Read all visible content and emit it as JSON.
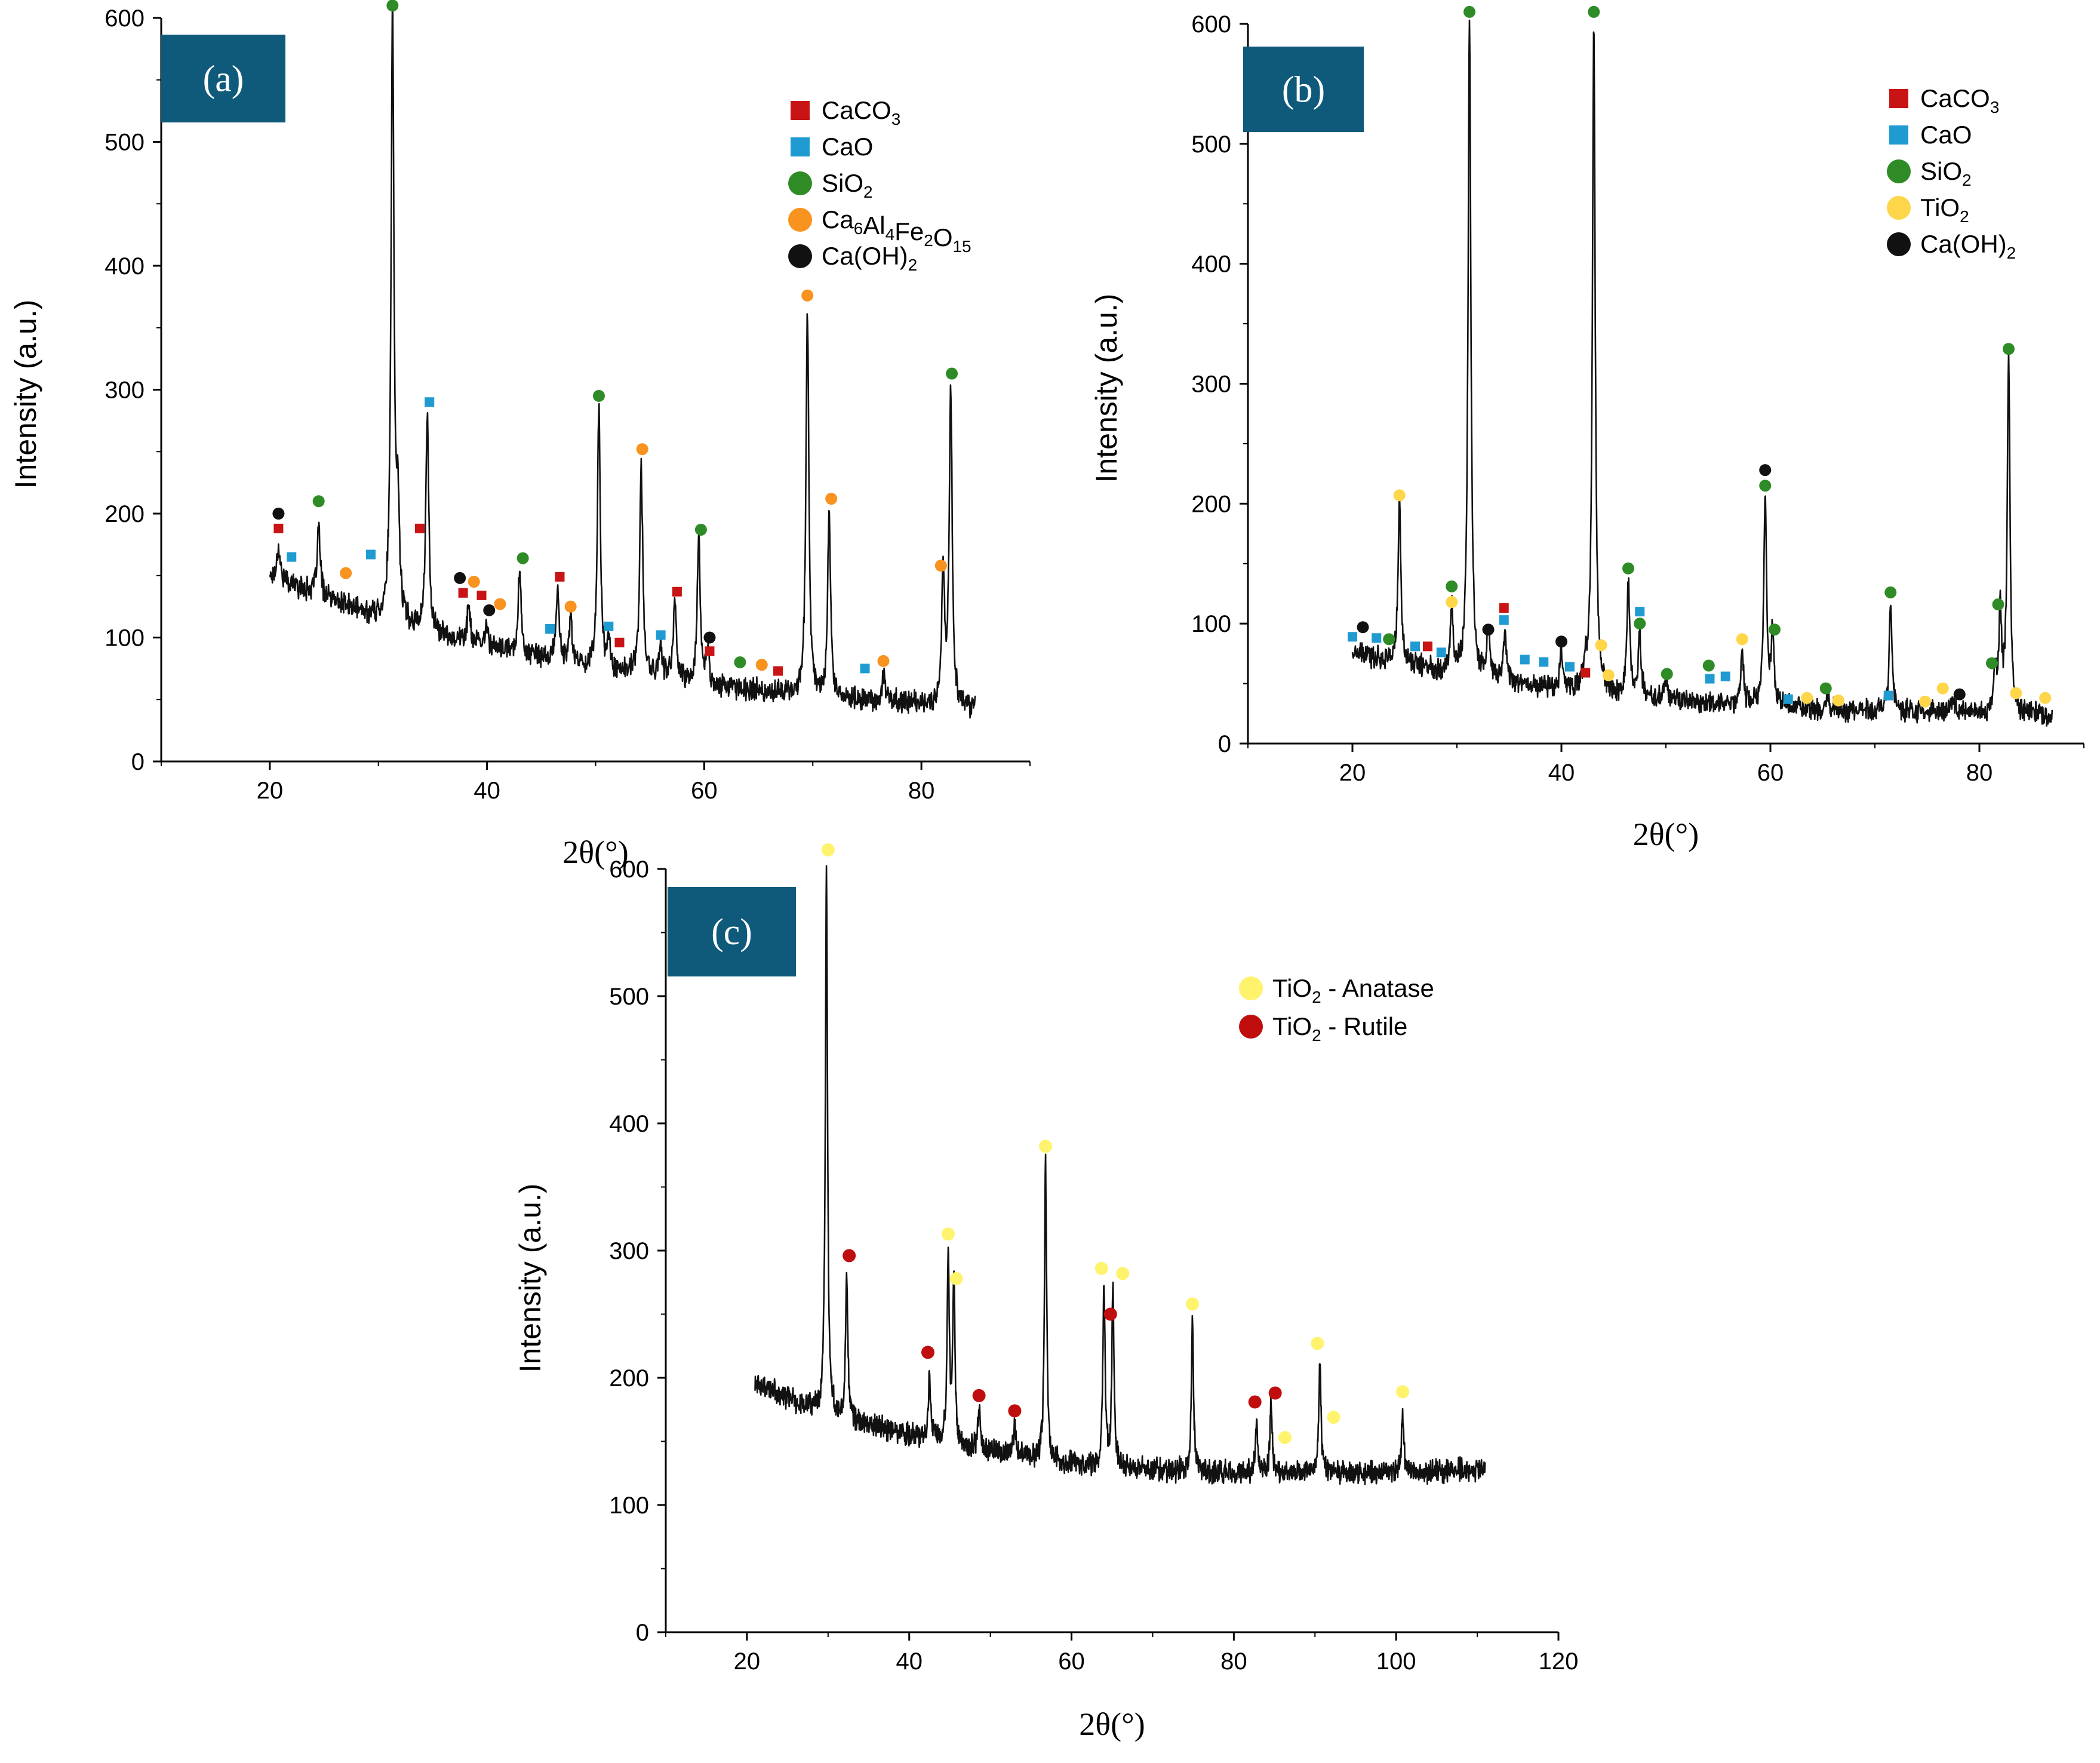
{
  "colors": {
    "line": "#111111",
    "CaCO3": "#c81414",
    "CaO": "#1f9bd2",
    "SiO2": "#2e8b26",
    "Ca6Al4Fe2O15": "#f7931e",
    "CaOH2": "#111111",
    "TiO2": "#ffd54a",
    "anatase": "#fff36e",
    "rutile": "#c00e0e",
    "panel_label_bg": "#0f5a7a"
  },
  "chart_data": [
    {
      "id": "a",
      "type": "line",
      "panel_label": "(a)",
      "xlabel": "2θ(°)",
      "ylabel": "Intensity (a.u.)",
      "xlim": [
        10,
        90
      ],
      "ylim": [
        0,
        600
      ],
      "xticks": [
        20,
        40,
        60,
        80
      ],
      "yticks": [
        0,
        100,
        200,
        300,
        400,
        500,
        600
      ],
      "grid": false,
      "legend_position": "top-right",
      "series": [
        {
          "name": "XRD pattern (a)",
          "x_range": [
            20,
            85
          ],
          "baseline": [
            [
              20,
              150
            ],
            [
              30,
              115
            ],
            [
              40,
              92
            ],
            [
              50,
              75
            ],
            [
              60,
              62
            ],
            [
              70,
              52
            ],
            [
              80,
              46
            ],
            [
              85,
              43
            ]
          ],
          "peaks": [
            [
              20.8,
              175
            ],
            [
              24.5,
              190
            ],
            [
              31.3,
              600
            ],
            [
              31.8,
              195
            ],
            [
              34.5,
              280
            ],
            [
              38.3,
              125
            ],
            [
              40,
              110
            ],
            [
              43,
              155
            ],
            [
              46.5,
              140
            ],
            [
              47.7,
              115
            ],
            [
              50.3,
              285
            ],
            [
              51.2,
              95
            ],
            [
              54.2,
              240
            ],
            [
              56,
              95
            ],
            [
              57.3,
              130
            ],
            [
              59.5,
              180
            ],
            [
              60.3,
              90
            ],
            [
              69.5,
              365
            ],
            [
              71.5,
              200
            ],
            [
              76.5,
              70
            ],
            [
              82,
              150
            ],
            [
              82.7,
              300
            ]
          ]
        }
      ],
      "legend": [
        {
          "label": "CaCO",
          "sub": "3",
          "shape": "square",
          "colorKey": "CaCO3"
        },
        {
          "label": "CaO",
          "shape": "square",
          "colorKey": "CaO"
        },
        {
          "label": "SiO",
          "sub": "2",
          "shape": "circle",
          "colorKey": "SiO2"
        },
        {
          "label": "Ca6Al4Fe2O15",
          "shape": "circle",
          "colorKey": "Ca6Al4Fe2O15",
          "parts": [
            [
              "Ca",
              ""
            ],
            [
              "6",
              "s"
            ],
            [
              "Al",
              ""
            ],
            [
              "4",
              "s"
            ],
            [
              "Fe",
              ""
            ],
            [
              "2",
              "s"
            ],
            [
              "O",
              ""
            ],
            [
              "15",
              "s"
            ]
          ]
        },
        {
          "label": "Ca(OH)",
          "sub": "2",
          "shape": "circle",
          "colorKey": "CaOH2"
        }
      ],
      "markers": [
        {
          "x": 20.8,
          "y": 200,
          "p": "CaOH2"
        },
        {
          "x": 20.8,
          "y": 188,
          "p": "CaCO3"
        },
        {
          "x": 22,
          "y": 165,
          "p": "CaO"
        },
        {
          "x": 24.5,
          "y": 210,
          "p": "SiO2"
        },
        {
          "x": 27,
          "y": 152,
          "p": "Ca6Al4Fe2O15"
        },
        {
          "x": 29.3,
          "y": 167,
          "p": "CaO"
        },
        {
          "x": 31.3,
          "y": 610,
          "p": "SiO2"
        },
        {
          "x": 33.8,
          "y": 188,
          "p": "CaCO3"
        },
        {
          "x": 34.7,
          "y": 290,
          "p": "CaO"
        },
        {
          "x": 37.5,
          "y": 148,
          "p": "CaOH2"
        },
        {
          "x": 37.8,
          "y": 136,
          "p": "CaCO3"
        },
        {
          "x": 38.8,
          "y": 145,
          "p": "Ca6Al4Fe2O15"
        },
        {
          "x": 39.5,
          "y": 134,
          "p": "CaCO3"
        },
        {
          "x": 40.2,
          "y": 122,
          "p": "CaOH2"
        },
        {
          "x": 41.2,
          "y": 127,
          "p": "Ca6Al4Fe2O15"
        },
        {
          "x": 43.3,
          "y": 164,
          "p": "SiO2"
        },
        {
          "x": 45.8,
          "y": 107,
          "p": "CaO"
        },
        {
          "x": 46.7,
          "y": 149,
          "p": "CaCO3"
        },
        {
          "x": 47.7,
          "y": 125,
          "p": "Ca6Al4Fe2O15"
        },
        {
          "x": 50.3,
          "y": 295,
          "p": "SiO2"
        },
        {
          "x": 51.2,
          "y": 109,
          "p": "CaO"
        },
        {
          "x": 52.2,
          "y": 96,
          "p": "CaCO3"
        },
        {
          "x": 54.3,
          "y": 252,
          "p": "Ca6Al4Fe2O15"
        },
        {
          "x": 56,
          "y": 102,
          "p": "CaO"
        },
        {
          "x": 57.5,
          "y": 137,
          "p": "CaCO3"
        },
        {
          "x": 59.7,
          "y": 187,
          "p": "SiO2"
        },
        {
          "x": 60.5,
          "y": 100,
          "p": "CaOH2"
        },
        {
          "x": 60.5,
          "y": 89,
          "p": "CaCO3"
        },
        {
          "x": 63.3,
          "y": 80,
          "p": "SiO2"
        },
        {
          "x": 65.3,
          "y": 78,
          "p": "Ca6Al4Fe2O15"
        },
        {
          "x": 66.8,
          "y": 73,
          "p": "CaCO3"
        },
        {
          "x": 69.5,
          "y": 376,
          "p": "Ca6Al4Fe2O15"
        },
        {
          "x": 71.7,
          "y": 212,
          "p": "Ca6Al4Fe2O15"
        },
        {
          "x": 74.8,
          "y": 75,
          "p": "CaO"
        },
        {
          "x": 76.5,
          "y": 81,
          "p": "Ca6Al4Fe2O15"
        },
        {
          "x": 81.8,
          "y": 158,
          "p": "Ca6Al4Fe2O15"
        },
        {
          "x": 82.8,
          "y": 313,
          "p": "SiO2"
        }
      ]
    },
    {
      "id": "b",
      "type": "line",
      "panel_label": "(b)",
      "xlabel": "2θ(°)",
      "ylabel": "Intensity (a.u.)",
      "xlim": [
        10,
        90
      ],
      "ylim": [
        0,
        600
      ],
      "xticks": [
        20,
        40,
        60,
        80
      ],
      "yticks": [
        0,
        100,
        200,
        300,
        400,
        500,
        600
      ],
      "grid": false,
      "legend_position": "top-right",
      "series": [
        {
          "name": "XRD pattern (b)",
          "x_range": [
            20,
            87
          ],
          "baseline": [
            [
              20,
              75
            ],
            [
              30,
              58
            ],
            [
              40,
              45
            ],
            [
              50,
              36
            ],
            [
              60,
              30
            ],
            [
              70,
              27
            ],
            [
              80,
              25
            ],
            [
              87,
              23
            ]
          ],
          "peaks": [
            [
              24.5,
              200
            ],
            [
              29.5,
              110
            ],
            [
              31.2,
              600
            ],
            [
              33,
              90
            ],
            [
              34.6,
              95
            ],
            [
              40,
              80
            ],
            [
              42.3,
              60
            ],
            [
              43.1,
              600
            ],
            [
              46.4,
              135
            ],
            [
              47.5,
              90
            ],
            [
              50,
              55
            ],
            [
              57.3,
              80
            ],
            [
              59.5,
              205
            ],
            [
              60.2,
              90
            ],
            [
              65.5,
              40
            ],
            [
              71.5,
              118
            ],
            [
              77.5,
              40
            ],
            [
              81.5,
              60
            ],
            [
              82,
              110
            ],
            [
              82.8,
              320
            ]
          ]
        }
      ],
      "legend": [
        {
          "label": "CaCO",
          "sub": "3",
          "shape": "square",
          "colorKey": "CaCO3"
        },
        {
          "label": "CaO",
          "shape": "square",
          "colorKey": "CaO"
        },
        {
          "label": "SiO",
          "sub": "2",
          "shape": "circle",
          "colorKey": "SiO2"
        },
        {
          "label": "TiO",
          "sub": "2",
          "shape": "circle",
          "colorKey": "TiO2"
        },
        {
          "label": "Ca(OH)",
          "sub": "2",
          "shape": "circle",
          "colorKey": "CaOH2"
        }
      ],
      "markers": [
        {
          "x": 20,
          "y": 89,
          "p": "CaO"
        },
        {
          "x": 21,
          "y": 97,
          "p": "CaOH2"
        },
        {
          "x": 22.3,
          "y": 88,
          "p": "CaO"
        },
        {
          "x": 23.5,
          "y": 87,
          "p": "SiO2"
        },
        {
          "x": 24.5,
          "y": 207,
          "p": "TiO2"
        },
        {
          "x": 26,
          "y": 81,
          "p": "CaO"
        },
        {
          "x": 27.2,
          "y": 81,
          "p": "CaCO3"
        },
        {
          "x": 28.5,
          "y": 76,
          "p": "CaO"
        },
        {
          "x": 29.5,
          "y": 131,
          "p": "SiO2"
        },
        {
          "x": 29.5,
          "y": 118,
          "p": "TiO2"
        },
        {
          "x": 31.2,
          "y": 610,
          "p": "SiO2"
        },
        {
          "x": 33,
          "y": 95,
          "p": "CaOH2"
        },
        {
          "x": 34.5,
          "y": 113,
          "p": "CaCO3"
        },
        {
          "x": 34.5,
          "y": 103,
          "p": "CaO"
        },
        {
          "x": 36.5,
          "y": 70,
          "p": "CaO"
        },
        {
          "x": 38.3,
          "y": 68,
          "p": "CaO"
        },
        {
          "x": 40,
          "y": 85,
          "p": "CaOH2"
        },
        {
          "x": 40.8,
          "y": 64,
          "p": "CaO"
        },
        {
          "x": 42.3,
          "y": 59,
          "p": "CaCO3"
        },
        {
          "x": 43.1,
          "y": 610,
          "p": "SiO2"
        },
        {
          "x": 43.8,
          "y": 82,
          "p": "TiO2"
        },
        {
          "x": 44.5,
          "y": 57,
          "p": "TiO2"
        },
        {
          "x": 46.4,
          "y": 146,
          "p": "SiO2"
        },
        {
          "x": 47.5,
          "y": 110,
          "p": "CaO"
        },
        {
          "x": 47.5,
          "y": 100,
          "p": "SiO2"
        },
        {
          "x": 50.1,
          "y": 58,
          "p": "SiO2"
        },
        {
          "x": 54.1,
          "y": 65,
          "p": "SiO2"
        },
        {
          "x": 54.2,
          "y": 54,
          "p": "CaO"
        },
        {
          "x": 55.7,
          "y": 56,
          "p": "CaO"
        },
        {
          "x": 57.3,
          "y": 87,
          "p": "TiO2"
        },
        {
          "x": 59.5,
          "y": 228,
          "p": "CaOH2"
        },
        {
          "x": 59.5,
          "y": 215,
          "p": "SiO2"
        },
        {
          "x": 60.4,
          "y": 95,
          "p": "SiO2"
        },
        {
          "x": 61.7,
          "y": 37,
          "p": "CaO"
        },
        {
          "x": 63.5,
          "y": 38,
          "p": "TiO2"
        },
        {
          "x": 65.3,
          "y": 46,
          "p": "SiO2"
        },
        {
          "x": 66.5,
          "y": 36,
          "p": "TiO2"
        },
        {
          "x": 71.3,
          "y": 40,
          "p": "CaO"
        },
        {
          "x": 71.5,
          "y": 126,
          "p": "SiO2"
        },
        {
          "x": 74.8,
          "y": 35,
          "p": "TiO2"
        },
        {
          "x": 76.5,
          "y": 46,
          "p": "TiO2"
        },
        {
          "x": 78.1,
          "y": 41,
          "p": "CaOH2"
        },
        {
          "x": 81.2,
          "y": 67,
          "p": "SiO2"
        },
        {
          "x": 81.8,
          "y": 116,
          "p": "SiO2"
        },
        {
          "x": 82.8,
          "y": 329,
          "p": "SiO2"
        },
        {
          "x": 83.5,
          "y": 42,
          "p": "TiO2"
        },
        {
          "x": 86.3,
          "y": 38,
          "p": "TiO2"
        }
      ]
    },
    {
      "id": "c",
      "type": "line",
      "panel_label": "(c)",
      "xlabel": "2θ(°)",
      "ylabel": "Intensity (a.u.)",
      "xlim": [
        10,
        120
      ],
      "ylim": [
        0,
        600
      ],
      "xticks": [
        20,
        40,
        60,
        80,
        100,
        120
      ],
      "yticks": [
        0,
        100,
        200,
        300,
        400,
        500,
        600
      ],
      "grid": false,
      "legend_position": "top-right",
      "series": [
        {
          "name": "XRD pattern (c)",
          "x_range": [
            21,
            111
          ],
          "baseline": [
            [
              21,
              195
            ],
            [
              30,
              170
            ],
            [
              40,
              155
            ],
            [
              50,
              142
            ],
            [
              60,
              132
            ],
            [
              70,
              127
            ],
            [
              80,
              125
            ],
            [
              90,
              125
            ],
            [
              100,
              126
            ],
            [
              111,
              128
            ]
          ],
          "peaks": [
            [
              29.8,
              600
            ],
            [
              32.3,
              285
            ],
            [
              42.5,
              205
            ],
            [
              44.8,
              300
            ],
            [
              45.5,
              275
            ],
            [
              48.6,
              175
            ],
            [
              53,
              165
            ],
            [
              56.8,
              367
            ],
            [
              64,
              270
            ],
            [
              65.1,
              270
            ],
            [
              74.9,
              245
            ],
            [
              82.8,
              165
            ],
            [
              84.6,
              180
            ],
            [
              90.6,
              215
            ],
            [
              100.8,
              172
            ]
          ]
        }
      ],
      "legend": [
        {
          "label": "TiO",
          "sub": "2",
          "suffix": " - Anatase",
          "shape": "circle",
          "colorKey": "anatase"
        },
        {
          "label": "TiO",
          "sub": "2",
          "suffix": " - Rutile",
          "shape": "circle",
          "colorKey": "rutile"
        }
      ],
      "markers": [
        {
          "x": 30,
          "y": 615,
          "p": "anatase"
        },
        {
          "x": 32.6,
          "y": 296,
          "p": "rutile"
        },
        {
          "x": 42.3,
          "y": 220,
          "p": "rutile"
        },
        {
          "x": 44.8,
          "y": 313,
          "p": "anatase"
        },
        {
          "x": 45.8,
          "y": 278,
          "p": "anatase"
        },
        {
          "x": 48.6,
          "y": 186,
          "p": "rutile"
        },
        {
          "x": 53,
          "y": 174,
          "p": "rutile"
        },
        {
          "x": 56.8,
          "y": 382,
          "p": "anatase"
        },
        {
          "x": 63.7,
          "y": 286,
          "p": "anatase"
        },
        {
          "x": 64.8,
          "y": 250,
          "p": "rutile"
        },
        {
          "x": 66.3,
          "y": 282,
          "p": "anatase"
        },
        {
          "x": 74.9,
          "y": 258,
          "p": "anatase"
        },
        {
          "x": 82.6,
          "y": 181,
          "p": "rutile"
        },
        {
          "x": 85.1,
          "y": 188,
          "p": "rutile"
        },
        {
          "x": 86.3,
          "y": 153,
          "p": "anatase"
        },
        {
          "x": 90.3,
          "y": 227,
          "p": "anatase"
        },
        {
          "x": 92.3,
          "y": 169,
          "p": "anatase"
        },
        {
          "x": 100.8,
          "y": 189,
          "p": "anatase"
        }
      ]
    }
  ]
}
